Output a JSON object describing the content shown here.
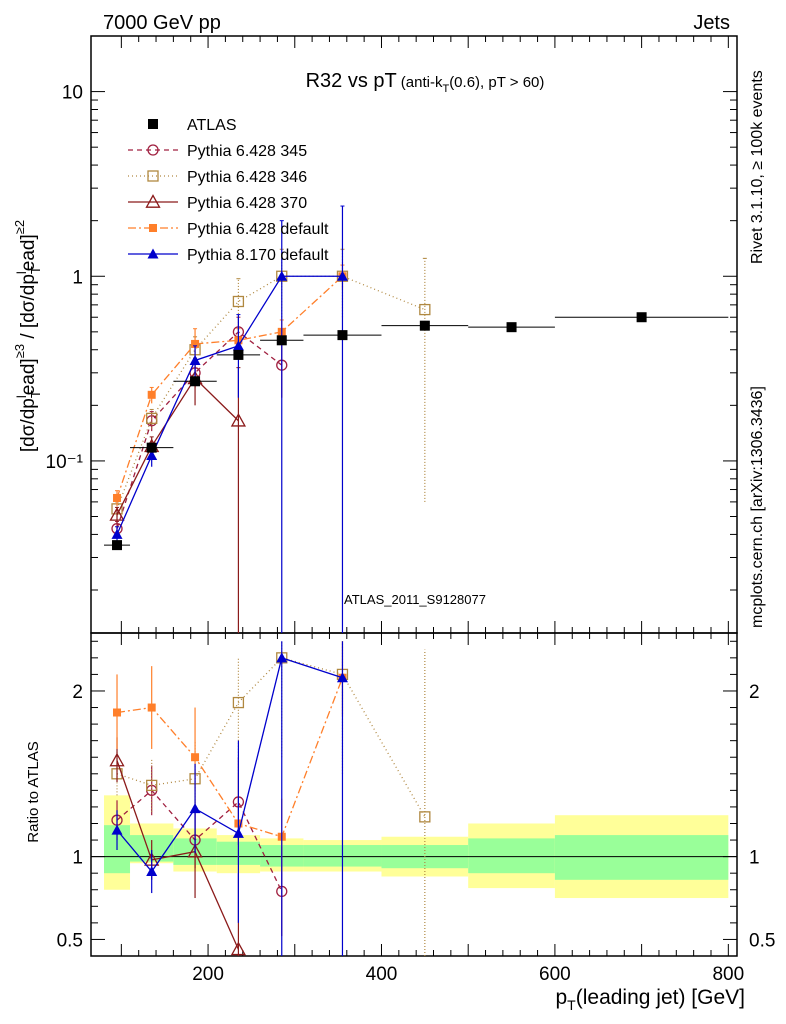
{
  "header": {
    "left": "7000 GeV pp",
    "right": "Jets"
  },
  "side": {
    "rivet": "Rivet 3.1.10, ≥ 100k events",
    "mcplots": "mcplots.cern.ch [arXiv:1306.3436]"
  },
  "watermark": "ATLAS_2011_S9128077",
  "chart_data": {
    "type": "scatter",
    "title": {
      "main": "R32 vs pT",
      "sub": "(anti-k",
      "sub_T": "T",
      "sub_rest": "(0.6), pT > 60)"
    },
    "ylabel": "[dσ/dpᵀlead]≥3 / [dσ/dpᵀlead]≥2",
    "ylabel_parts": {
      "a": "[dσ/dp",
      "b": "ead]",
      "c": " / [dσ/dp",
      "d": "ead]",
      "sup3": "≥3",
      "sup2": "≥2",
      "T": "T",
      "l": "l"
    },
    "xlabel": {
      "p": "p",
      "T": "T",
      "rest": "(leading jet) [GeV]"
    },
    "ratio_ylabel": "Ratio to ATLAS",
    "x_range": [
      65,
      810
    ],
    "y_range_log": [
      0.0117,
      20
    ],
    "ratio_range": [
      0.4,
      2.35
    ],
    "x_ticks": [
      200,
      400,
      600,
      800
    ],
    "y_ticks": [
      {
        "value": 10,
        "label": "10"
      },
      {
        "value": 1,
        "label": "1"
      },
      {
        "value": 0.1,
        "label": "10⁻¹"
      }
    ],
    "ratio_ticks": [
      {
        "value": 0.5,
        "label": "0.5"
      },
      {
        "value": 1,
        "label": "1"
      },
      {
        "value": 2,
        "label": "2"
      }
    ],
    "data": {
      "name": "ATLAS",
      "color": "#000000",
      "points": [
        {
          "x": 95,
          "y": 0.035,
          "xlo": 80,
          "xhi": 110
        },
        {
          "x": 135,
          "y": 0.118,
          "xlo": 110,
          "xhi": 160
        },
        {
          "x": 185,
          "y": 0.27,
          "xlo": 160,
          "xhi": 210
        },
        {
          "x": 235,
          "y": 0.375,
          "xlo": 210,
          "xhi": 260
        },
        {
          "x": 285,
          "y": 0.45,
          "xlo": 260,
          "xhi": 310
        },
        {
          "x": 355,
          "y": 0.48,
          "xlo": 310,
          "xhi": 400
        },
        {
          "x": 450,
          "y": 0.54,
          "xlo": 400,
          "xhi": 500
        },
        {
          "x": 550,
          "y": 0.53,
          "xlo": 500,
          "xhi": 600
        },
        {
          "x": 700,
          "y": 0.6,
          "xlo": 600,
          "xhi": 800
        }
      ]
    },
    "bands": [
      {
        "xlo": 80,
        "xhi": 110,
        "g": [
          0.9,
          1.19
        ],
        "y": [
          0.8,
          1.37
        ]
      },
      {
        "xlo": 110,
        "xhi": 160,
        "g": [
          0.97,
          1.13
        ],
        "y": [
          0.96,
          1.2
        ]
      },
      {
        "xlo": 160,
        "xhi": 210,
        "g": [
          0.95,
          1.11
        ],
        "y": [
          0.91,
          1.17
        ]
      },
      {
        "xlo": 210,
        "xhi": 260,
        "g": [
          0.95,
          1.09
        ],
        "y": [
          0.9,
          1.13
        ]
      },
      {
        "xlo": 260,
        "xhi": 310,
        "g": [
          0.94,
          1.07
        ],
        "y": [
          0.91,
          1.11
        ]
      },
      {
        "xlo": 310,
        "xhi": 400,
        "g": [
          0.94,
          1.07
        ],
        "y": [
          0.91,
          1.1
        ]
      },
      {
        "xlo": 400,
        "xhi": 500,
        "g": [
          0.93,
          1.07
        ],
        "y": [
          0.88,
          1.12
        ]
      },
      {
        "xlo": 500,
        "xhi": 600,
        "g": [
          0.9,
          1.11
        ],
        "y": [
          0.81,
          1.2
        ]
      },
      {
        "xlo": 600,
        "xhi": 800,
        "g": [
          0.86,
          1.13
        ],
        "y": [
          0.75,
          1.25
        ]
      }
    ],
    "band_colors": {
      "green": "#99ff99",
      "yellow": "#ffff99"
    },
    "series": [
      {
        "name": "Pythia 6.428 345",
        "color": "#a02040",
        "dash": "5,4",
        "marker": "circle-open",
        "points": [
          {
            "x": 95,
            "y": 0.043,
            "lo": 0.039,
            "hi": 0.047
          },
          {
            "x": 135,
            "y": 0.165,
            "lo": 0.145,
            "hi": 0.185
          },
          {
            "x": 185,
            "y": 0.3,
            "lo": 0.25,
            "hi": 0.35
          },
          {
            "x": 235,
            "y": 0.5,
            "lo": 0.4,
            "hi": 0.6
          },
          {
            "x": 285,
            "y": 0.33,
            "lo": 0.22,
            "hi": 0.44
          }
        ],
        "ratio": [
          {
            "x": 95,
            "r": 1.22,
            "lo": 1.1,
            "hi": 1.34
          },
          {
            "x": 135,
            "r": 1.4,
            "lo": 1.25,
            "hi": 1.55
          },
          {
            "x": 185,
            "r": 1.1,
            "lo": 0.93,
            "hi": 1.3
          },
          {
            "x": 235,
            "r": 1.33,
            "lo": 1.07,
            "hi": 1.6
          },
          {
            "x": 285,
            "r": 0.79,
            "lo": 0.52,
            "hi": 1.06
          }
        ]
      },
      {
        "name": "Pythia 6.428 346",
        "color": "#b08840",
        "dash": "1,3",
        "marker": "square-open",
        "points": [
          {
            "x": 95,
            "y": 0.055,
            "lo": 0.05,
            "hi": 0.06
          },
          {
            "x": 135,
            "y": 0.17,
            "lo": 0.15,
            "hi": 0.19
          },
          {
            "x": 185,
            "y": 0.4,
            "lo": 0.33,
            "hi": 0.47
          },
          {
            "x": 235,
            "y": 0.73,
            "lo": 0.5,
            "hi": 0.97
          },
          {
            "x": 285,
            "y": 1.0,
            "lo": 0.6,
            "hi": 1.4
          },
          {
            "x": 355,
            "y": 1.0,
            "lo": 0.6,
            "hi": 1.4
          },
          {
            "x": 450,
            "y": 0.66,
            "lo": 0.06,
            "hi": 1.25
          }
        ],
        "ratio": [
          {
            "x": 95,
            "r": 1.5,
            "lo": 1.37,
            "hi": 1.63
          },
          {
            "x": 135,
            "r": 1.43,
            "lo": 1.27,
            "hi": 1.59
          },
          {
            "x": 185,
            "r": 1.47,
            "lo": 1.25,
            "hi": 1.7
          },
          {
            "x": 235,
            "r": 1.93,
            "lo": 1.5,
            "hi": 2.2
          },
          {
            "x": 285,
            "r": 2.2,
            "lo": 1.6,
            "hi": 2.3
          },
          {
            "x": 355,
            "r": 2.1,
            "lo": 1.5,
            "hi": 2.3
          },
          {
            "x": 450,
            "r": 1.24,
            "lo": 0.3,
            "hi": 2.25
          }
        ]
      },
      {
        "name": "Pythia 6.428 370",
        "color": "#8b1a1a",
        "dash": "",
        "marker": "triangle-open",
        "points": [
          {
            "x": 95,
            "y": 0.051,
            "lo": 0.046,
            "hi": 0.056
          },
          {
            "x": 135,
            "y": 0.12,
            "lo": 0.105,
            "hi": 0.135
          },
          {
            "x": 185,
            "y": 0.28,
            "lo": 0.2,
            "hi": 0.36
          },
          {
            "x": 235,
            "y": 0.165,
            "lo": 0.011,
            "hi": 0.32
          }
        ],
        "ratio": [
          {
            "x": 95,
            "r": 1.58,
            "lo": 1.45,
            "hi": 1.72
          },
          {
            "x": 135,
            "r": 0.98,
            "lo": 0.86,
            "hi": 1.1
          },
          {
            "x": 185,
            "r": 1.03,
            "lo": 0.75,
            "hi": 1.3
          },
          {
            "x": 235,
            "r": 0.44,
            "lo": 0.35,
            "hi": 0.9
          }
        ]
      },
      {
        "name": "Pythia 6.428 default",
        "color": "#ff7f2a",
        "dash": "8,3,2,3",
        "marker": "square-filled",
        "points": [
          {
            "x": 95,
            "y": 0.063,
            "lo": 0.057,
            "hi": 0.069
          },
          {
            "x": 135,
            "y": 0.228,
            "lo": 0.205,
            "hi": 0.25
          },
          {
            "x": 185,
            "y": 0.43,
            "lo": 0.37,
            "hi": 0.52
          },
          {
            "x": 235,
            "y": 0.45,
            "lo": 0.38,
            "hi": 0.52
          },
          {
            "x": 285,
            "y": 0.5,
            "lo": 0.42,
            "hi": 0.58
          },
          {
            "x": 355,
            "y": 1.0,
            "lo": 0.85,
            "hi": 1.15
          }
        ],
        "ratio": [
          {
            "x": 95,
            "r": 1.87,
            "lo": 1.65,
            "hi": 2.1
          },
          {
            "x": 135,
            "r": 1.9,
            "lo": 1.65,
            "hi": 2.15
          },
          {
            "x": 185,
            "r": 1.6,
            "lo": 1.3,
            "hi": 1.9
          },
          {
            "x": 235,
            "r": 1.2,
            "lo": 0.95,
            "hi": 1.5
          },
          {
            "x": 285,
            "r": 1.12,
            "lo": 0.9,
            "hi": 1.35
          },
          {
            "x": 355,
            "r": 2.08,
            "lo": 1.85,
            "hi": 2.3
          }
        ]
      },
      {
        "name": "Pythia 8.170 default",
        "color": "#0000cc",
        "dash": "",
        "marker": "triangle-filled",
        "points": [
          {
            "x": 95,
            "y": 0.04,
            "lo": 0.037,
            "hi": 0.044
          },
          {
            "x": 135,
            "y": 0.107,
            "lo": 0.093,
            "hi": 0.12
          },
          {
            "x": 185,
            "y": 0.35,
            "lo": 0.28,
            "hi": 0.42
          },
          {
            "x": 235,
            "y": 0.42,
            "lo": 0.22,
            "hi": 0.62
          },
          {
            "x": 285,
            "y": 1.0,
            "lo": 0.01,
            "hi": 2.0
          },
          {
            "x": 355,
            "y": 1.0,
            "lo": 0.01,
            "hi": 2.4
          }
        ],
        "ratio": [
          {
            "x": 95,
            "r": 1.16,
            "lo": 1.04,
            "hi": 1.28
          },
          {
            "x": 135,
            "r": 0.91,
            "lo": 0.78,
            "hi": 1.04
          },
          {
            "x": 185,
            "r": 1.29,
            "lo": 1.02,
            "hi": 1.56
          },
          {
            "x": 235,
            "r": 1.14,
            "lo": 0.6,
            "hi": 1.7
          },
          {
            "x": 285,
            "r": 2.2,
            "lo": 0.3,
            "hi": 2.3
          },
          {
            "x": 355,
            "r": 2.08,
            "lo": 0.3,
            "hi": 2.3
          }
        ]
      }
    ]
  }
}
